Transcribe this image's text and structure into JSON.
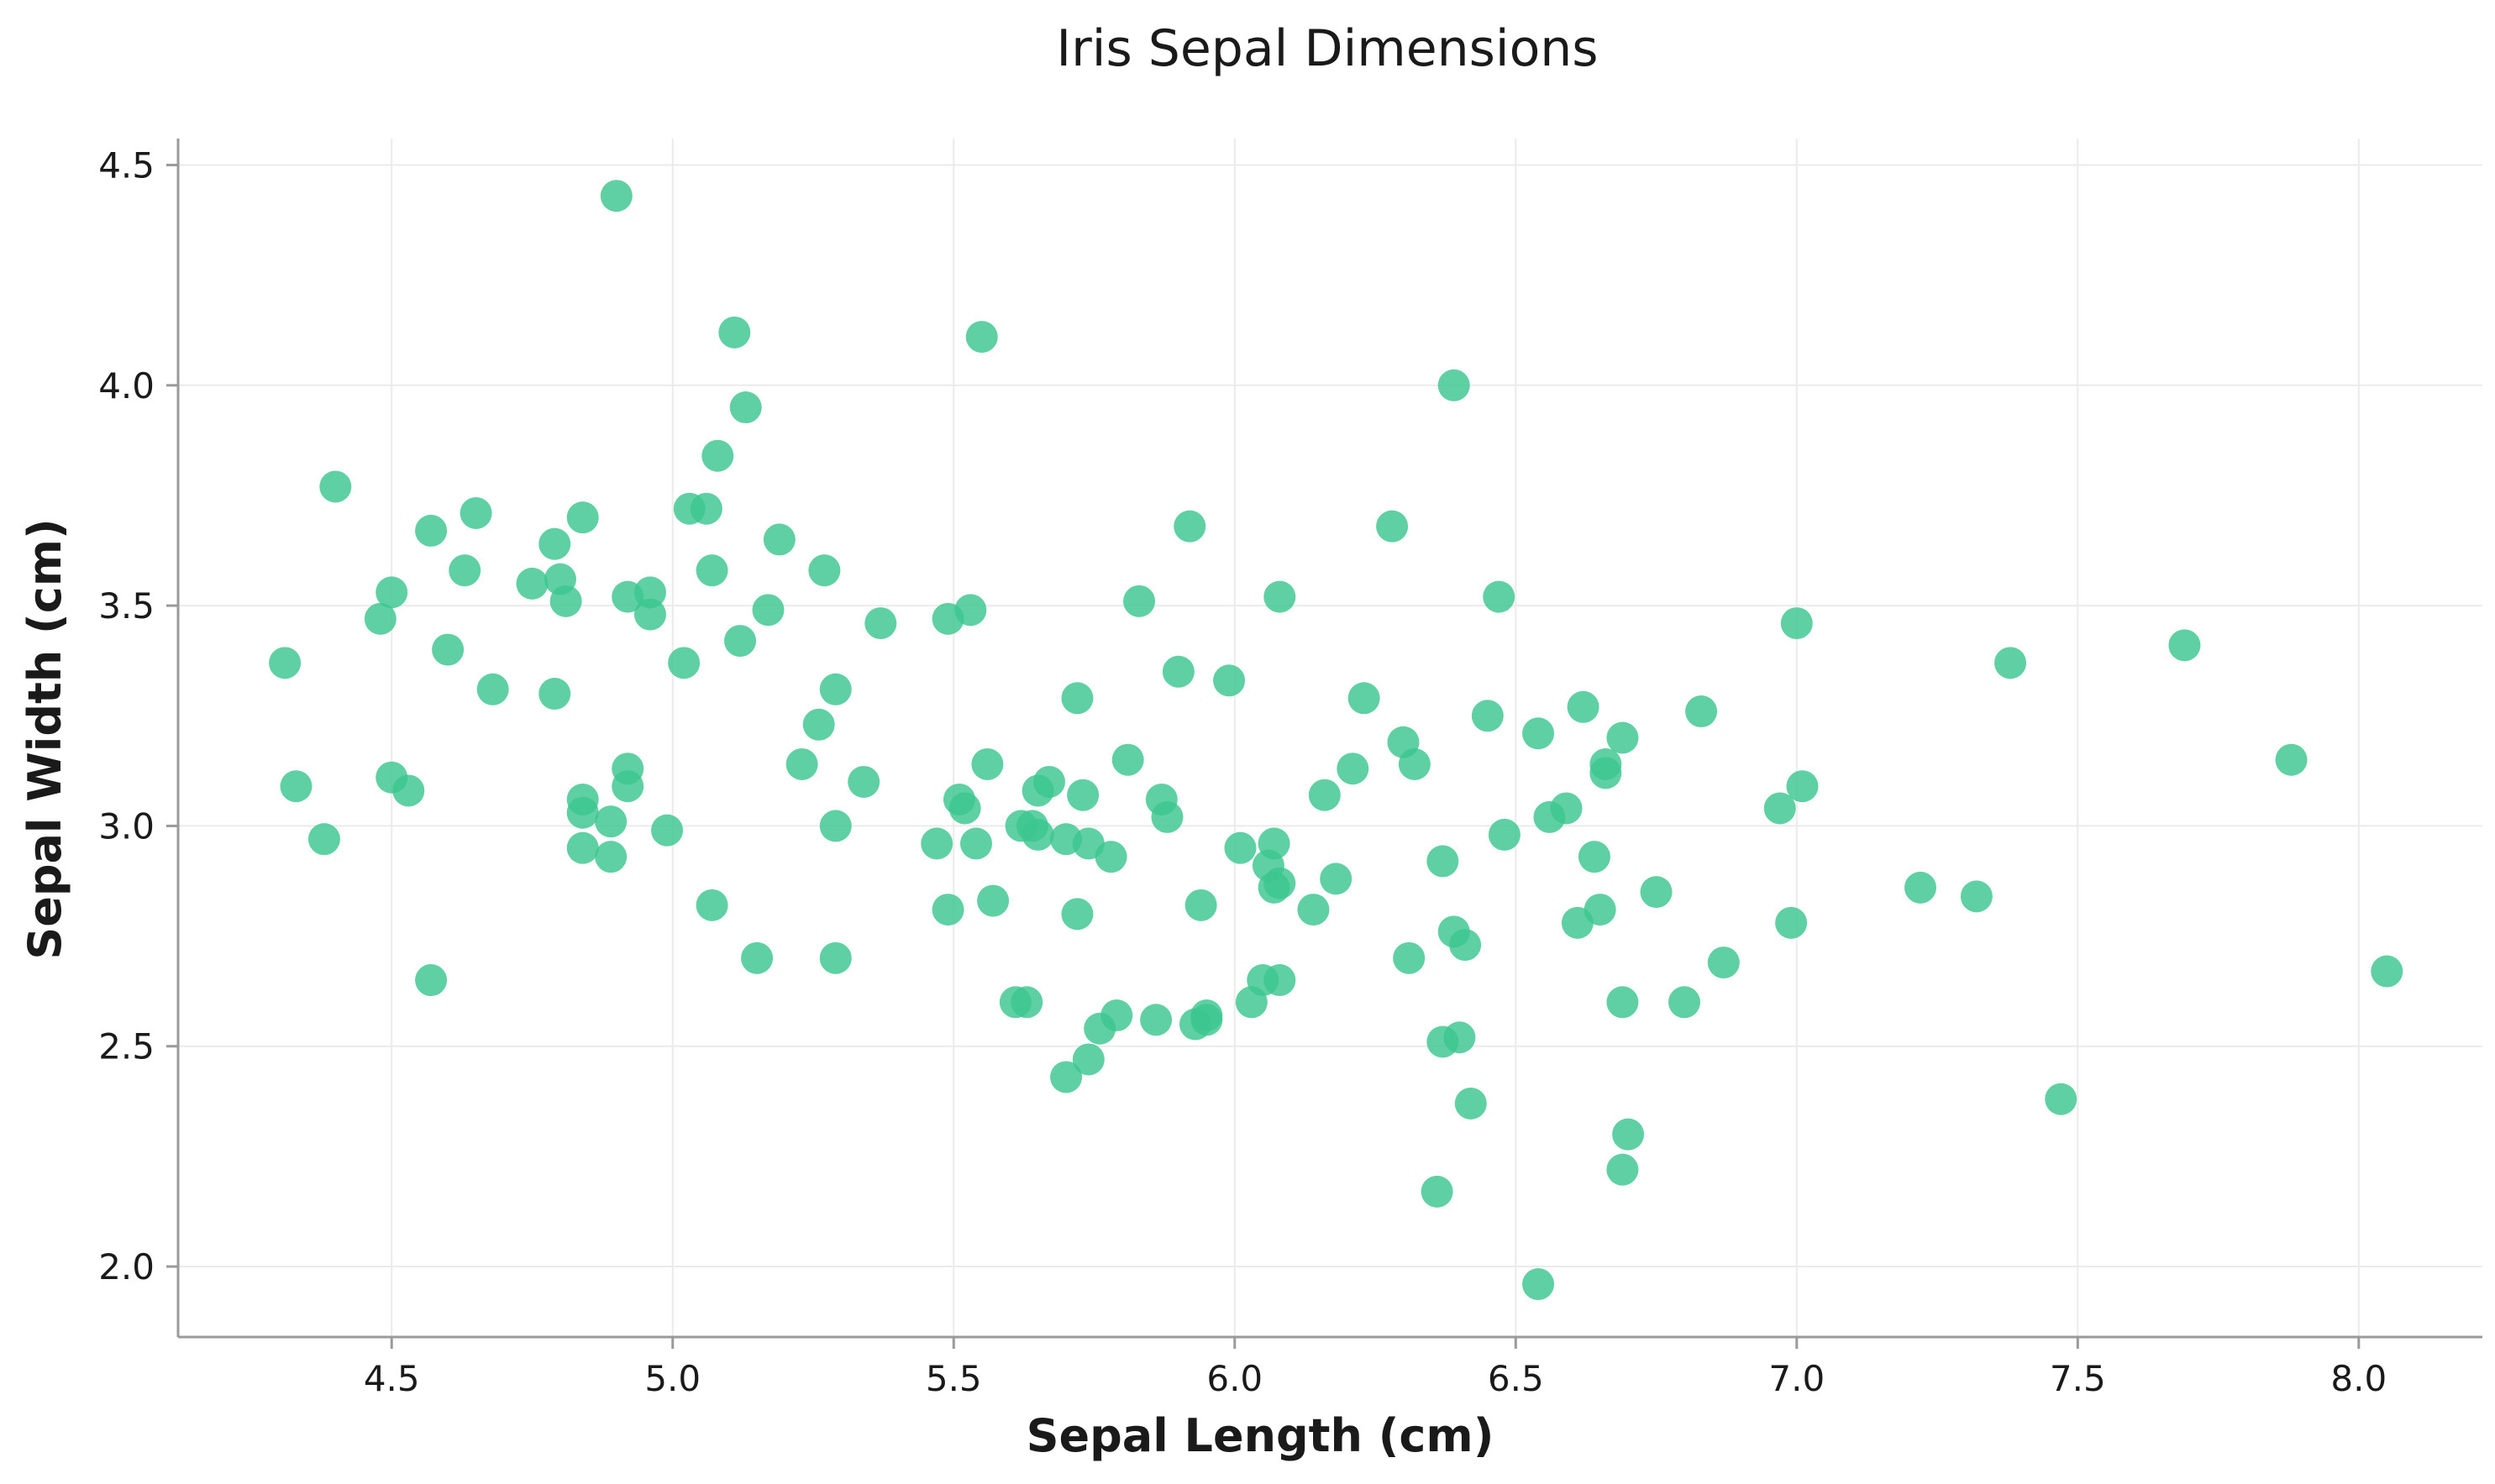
{
  "chart_data": {
    "type": "scatter",
    "title": "Iris Sepal Dimensions",
    "xlabel": "Sepal Length (cm)",
    "ylabel": "Sepal Width (cm)",
    "xlim": [
      4.12,
      8.22
    ],
    "ylim": [
      1.84,
      4.56
    ],
    "xticks": [
      4.5,
      5.0,
      5.5,
      6.0,
      6.5,
      7.0,
      7.5,
      8.0
    ],
    "yticks": [
      2.0,
      2.5,
      3.0,
      3.5,
      4.0,
      4.5
    ],
    "xtick_labels": [
      "4.5",
      "5.0",
      "5.5",
      "6.0",
      "6.5",
      "7.0",
      "7.5",
      "8.0"
    ],
    "ytick_labels": [
      "2.0",
      "2.5",
      "3.0",
      "3.5",
      "4.0",
      "4.5"
    ],
    "grid": true,
    "marker_color": "#3cc68f",
    "points": [
      [
        4.31,
        3.37
      ],
      [
        4.33,
        3.09
      ],
      [
        4.38,
        2.97
      ],
      [
        4.4,
        3.77
      ],
      [
        4.48,
        3.47
      ],
      [
        4.5,
        3.53
      ],
      [
        4.5,
        3.11
      ],
      [
        4.53,
        3.08
      ],
      [
        4.57,
        3.67
      ],
      [
        4.57,
        2.65
      ],
      [
        4.6,
        3.4
      ],
      [
        4.63,
        3.58
      ],
      [
        4.65,
        3.71
      ],
      [
        4.68,
        3.31
      ],
      [
        4.75,
        3.55
      ],
      [
        4.79,
        3.64
      ],
      [
        4.79,
        3.3
      ],
      [
        4.8,
        3.56
      ],
      [
        4.81,
        3.51
      ],
      [
        4.84,
        3.7
      ],
      [
        4.84,
        3.06
      ],
      [
        4.84,
        3.03
      ],
      [
        4.84,
        2.95
      ],
      [
        4.89,
        3.01
      ],
      [
        4.89,
        2.93
      ],
      [
        4.9,
        4.43
      ],
      [
        4.92,
        3.52
      ],
      [
        4.92,
        3.13
      ],
      [
        4.92,
        3.09
      ],
      [
        4.96,
        3.53
      ],
      [
        4.96,
        3.48
      ],
      [
        4.99,
        2.99
      ],
      [
        5.02,
        3.37
      ],
      [
        5.03,
        3.72
      ],
      [
        5.06,
        3.72
      ],
      [
        5.07,
        3.58
      ],
      [
        5.07,
        2.82
      ],
      [
        5.08,
        3.84
      ],
      [
        5.11,
        4.12
      ],
      [
        5.12,
        3.42
      ],
      [
        5.13,
        3.95
      ],
      [
        5.15,
        2.7
      ],
      [
        5.17,
        3.49
      ],
      [
        5.19,
        3.65
      ],
      [
        5.23,
        3.14
      ],
      [
        5.26,
        3.23
      ],
      [
        5.27,
        3.58
      ],
      [
        5.29,
        3.31
      ],
      [
        5.29,
        3.0
      ],
      [
        5.29,
        2.7
      ],
      [
        5.34,
        3.1
      ],
      [
        5.37,
        3.46
      ],
      [
        5.47,
        2.96
      ],
      [
        5.49,
        3.47
      ],
      [
        5.49,
        2.81
      ],
      [
        5.51,
        3.06
      ],
      [
        5.52,
        3.04
      ],
      [
        5.53,
        3.49
      ],
      [
        5.54,
        2.96
      ],
      [
        5.55,
        4.11
      ],
      [
        5.56,
        3.14
      ],
      [
        5.57,
        2.83
      ],
      [
        5.61,
        2.6
      ],
      [
        5.62,
        3.0
      ],
      [
        5.63,
        2.6
      ],
      [
        5.64,
        3.0
      ],
      [
        5.65,
        3.08
      ],
      [
        5.65,
        2.98
      ],
      [
        5.67,
        3.1
      ],
      [
        5.7,
        2.97
      ],
      [
        5.7,
        2.43
      ],
      [
        5.72,
        3.29
      ],
      [
        5.72,
        2.8
      ],
      [
        5.73,
        3.07
      ],
      [
        5.74,
        2.96
      ],
      [
        5.74,
        2.47
      ],
      [
        5.76,
        2.54
      ],
      [
        5.78,
        2.93
      ],
      [
        5.79,
        2.57
      ],
      [
        5.81,
        3.15
      ],
      [
        5.83,
        3.51
      ],
      [
        5.86,
        2.56
      ],
      [
        5.87,
        3.06
      ],
      [
        5.88,
        3.02
      ],
      [
        5.9,
        3.35
      ],
      [
        5.92,
        3.68
      ],
      [
        5.93,
        2.55
      ],
      [
        5.94,
        2.82
      ],
      [
        5.95,
        2.57
      ],
      [
        5.95,
        2.56
      ],
      [
        5.99,
        3.33
      ],
      [
        6.01,
        2.95
      ],
      [
        6.03,
        2.6
      ],
      [
        6.05,
        2.65
      ],
      [
        6.06,
        2.91
      ],
      [
        6.07,
        2.96
      ],
      [
        6.07,
        2.86
      ],
      [
        6.08,
        3.52
      ],
      [
        6.08,
        2.87
      ],
      [
        6.08,
        2.65
      ],
      [
        6.14,
        2.81
      ],
      [
        6.16,
        3.07
      ],
      [
        6.18,
        2.88
      ],
      [
        6.21,
        3.13
      ],
      [
        6.23,
        3.29
      ],
      [
        6.28,
        3.68
      ],
      [
        6.3,
        3.19
      ],
      [
        6.31,
        2.7
      ],
      [
        6.32,
        3.14
      ],
      [
        6.36,
        2.17
      ],
      [
        6.37,
        2.92
      ],
      [
        6.37,
        2.51
      ],
      [
        6.39,
        4.0
      ],
      [
        6.39,
        2.76
      ],
      [
        6.4,
        2.52
      ],
      [
        6.41,
        2.73
      ],
      [
        6.42,
        2.37
      ],
      [
        6.45,
        3.25
      ],
      [
        6.47,
        3.52
      ],
      [
        6.48,
        2.98
      ],
      [
        6.54,
        3.21
      ],
      [
        6.54,
        1.96
      ],
      [
        6.56,
        3.02
      ],
      [
        6.59,
        3.04
      ],
      [
        6.61,
        2.78
      ],
      [
        6.62,
        3.27
      ],
      [
        6.64,
        2.93
      ],
      [
        6.65,
        2.81
      ],
      [
        6.66,
        3.14
      ],
      [
        6.66,
        3.12
      ],
      [
        6.69,
        3.2
      ],
      [
        6.69,
        2.6
      ],
      [
        6.69,
        2.22
      ],
      [
        6.7,
        2.3
      ],
      [
        6.75,
        2.85
      ],
      [
        6.8,
        2.6
      ],
      [
        6.83,
        3.26
      ],
      [
        6.87,
        2.69
      ],
      [
        6.97,
        3.04
      ],
      [
        6.99,
        2.78
      ],
      [
        7.0,
        3.46
      ],
      [
        7.01,
        3.09
      ],
      [
        7.22,
        2.86
      ],
      [
        7.32,
        2.84
      ],
      [
        7.38,
        3.37
      ],
      [
        7.47,
        2.38
      ],
      [
        7.69,
        3.41
      ],
      [
        7.88,
        3.15
      ],
      [
        8.05,
        2.67
      ]
    ]
  }
}
